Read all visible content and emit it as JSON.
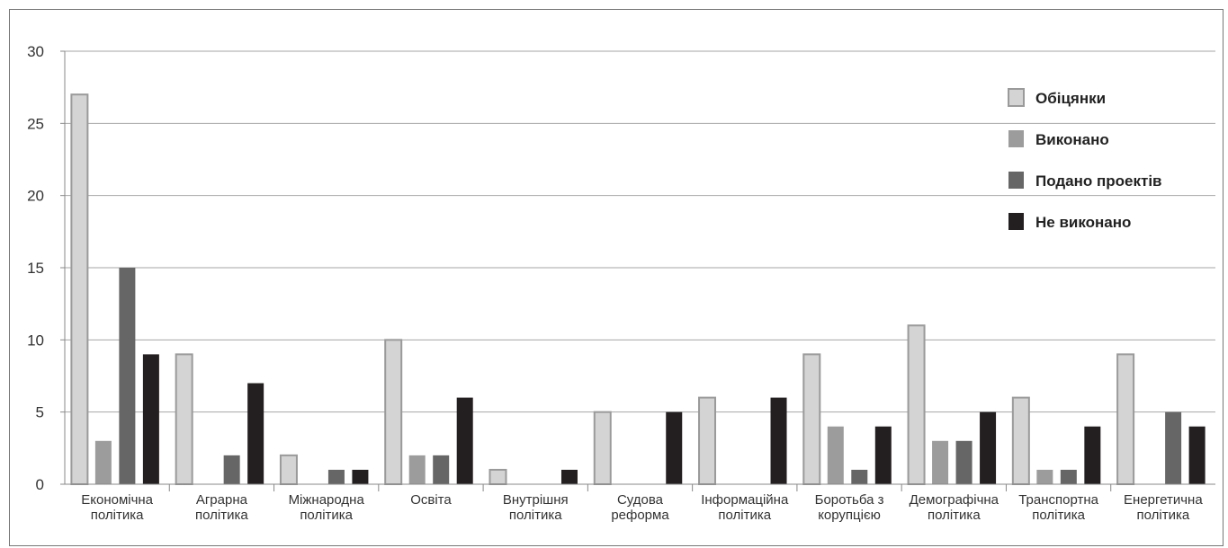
{
  "chart_data": {
    "type": "bar",
    "title": "",
    "xlabel": "",
    "ylabel": "",
    "ylim": [
      0,
      30
    ],
    "yticks": [
      0,
      5,
      10,
      15,
      20,
      25,
      30
    ],
    "grid": true,
    "legend_position": "top-right",
    "categories": [
      [
        "Економічна",
        "політика"
      ],
      [
        "Аграрна",
        "політика"
      ],
      [
        "Міжнародна",
        "політика"
      ],
      [
        "Освіта"
      ],
      [
        "Внутрішня",
        "політика"
      ],
      [
        "Судова",
        "реформа"
      ],
      [
        "Інформаційна",
        "політика"
      ],
      [
        "Боротьба з",
        "корупцією"
      ],
      [
        "Демографічна",
        "політика"
      ],
      [
        "Транспортна",
        "політика"
      ],
      [
        "Енергетична",
        "політика"
      ]
    ],
    "series": [
      {
        "name": "Обіцянки",
        "color": "#d4d4d4",
        "stroke": "#9a9a9a",
        "values": [
          27,
          9,
          2,
          10,
          1,
          5,
          6,
          9,
          11,
          6,
          9
        ]
      },
      {
        "name": "Виконано",
        "color": "#9c9c9c",
        "stroke": "#9c9c9c",
        "values": [
          3,
          0,
          0,
          2,
          0,
          0,
          0,
          4,
          3,
          1,
          0
        ]
      },
      {
        "name": "Подано проектів",
        "color": "#666666",
        "stroke": "#666666",
        "values": [
          15,
          2,
          1,
          2,
          0,
          0,
          0,
          1,
          3,
          1,
          5
        ]
      },
      {
        "name": "Не виконано",
        "color": "#231f20",
        "stroke": "#231f20",
        "values": [
          9,
          7,
          1,
          6,
          1,
          5,
          6,
          4,
          5,
          4,
          4
        ]
      }
    ]
  }
}
